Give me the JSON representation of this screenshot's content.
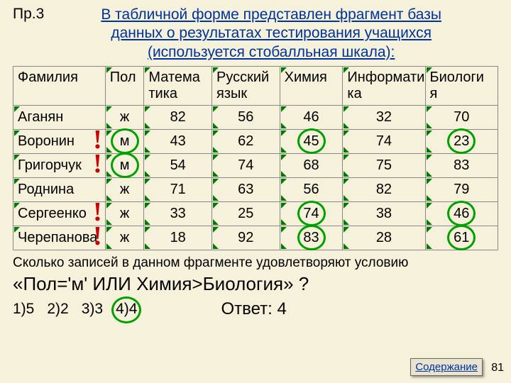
{
  "background_color": "#f5f1db",
  "ex_label": "Пр.3",
  "title_lines": [
    "В табличной форме представлен фрагмент базы",
    "данных о результатах тестирования учащихся",
    "(используется стобалльная шкала):"
  ],
  "table": {
    "col_widths_pct": [
      19,
      8,
      14,
      14,
      13,
      17,
      15
    ],
    "header": [
      "Фамилия",
      "Пол",
      "Матема\nтика",
      "Русский\nязык",
      "Химия",
      "Информати\nка",
      "Биологи\nя"
    ],
    "rows": [
      {
        "cells": [
          "Аганян",
          "ж",
          "82",
          "56",
          "46",
          "32",
          "70"
        ],
        "excl": false,
        "circles": []
      },
      {
        "cells": [
          "Воронин",
          "м",
          "43",
          "62",
          "45",
          "74",
          "23"
        ],
        "excl": true,
        "circles": [
          1,
          4,
          6
        ]
      },
      {
        "cells": [
          "Григорчук",
          "м",
          "54",
          "74",
          "68",
          "75",
          "83"
        ],
        "excl": true,
        "circles": [
          1
        ]
      },
      {
        "cells": [
          "Роднина",
          "ж",
          "71",
          "63",
          "56",
          "82",
          "79"
        ],
        "excl": false,
        "circles": []
      },
      {
        "cells": [
          "Сергеенко",
          "ж",
          "33",
          "25",
          "74",
          "38",
          "46"
        ],
        "excl": true,
        "circles": [
          4,
          6
        ]
      },
      {
        "cells": [
          "Черепанова",
          "ж",
          "18",
          "92",
          "83",
          "28",
          "61"
        ],
        "excl": true,
        "circles": [
          4,
          6
        ]
      }
    ],
    "border_color": "#888888",
    "arrow_color": "#007a00",
    "circle_color": "#00a000",
    "font_size": 20
  },
  "question_line": "Сколько записей в данном фрагменте удовлетворяют условию",
  "condition": "«Пол='м' ИЛИ Химия>Биология» ?",
  "options": [
    "1)5",
    "2)2",
    "3)3",
    "4)4"
  ],
  "correct_option_index": 3,
  "answer_text": "Ответ: 4",
  "contents_button": "Содержание",
  "page_number": "81",
  "colors": {
    "title": "#003399",
    "excl": "#cc0000",
    "text": "#000000"
  }
}
